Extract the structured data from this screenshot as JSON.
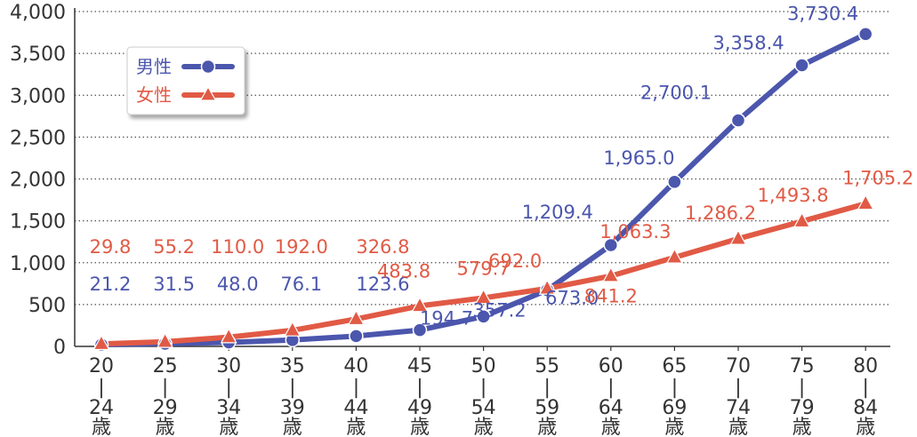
{
  "chart_data": {
    "type": "line",
    "title": "",
    "xlabel": "",
    "ylabel": "",
    "ylim": [
      0,
      4000
    ],
    "y_ticks": [
      "0",
      "500",
      "1,000",
      "1,500",
      "2,000",
      "2,500",
      "3,000",
      "3,500",
      "4,000"
    ],
    "y_tick_values": [
      0,
      500,
      1000,
      1500,
      2000,
      2500,
      3000,
      3500,
      4000
    ],
    "grid": "horizontal-dotted",
    "legend_position": "top-left",
    "categories": [
      {
        "start": "20",
        "end": "24",
        "unit": "歳"
      },
      {
        "start": "25",
        "end": "29",
        "unit": "歳"
      },
      {
        "start": "30",
        "end": "34",
        "unit": "歳"
      },
      {
        "start": "35",
        "end": "39",
        "unit": "歳"
      },
      {
        "start": "40",
        "end": "44",
        "unit": "歳"
      },
      {
        "start": "45",
        "end": "49",
        "unit": "歳"
      },
      {
        "start": "50",
        "end": "54",
        "unit": "歳"
      },
      {
        "start": "55",
        "end": "59",
        "unit": "歳"
      },
      {
        "start": "60",
        "end": "64",
        "unit": "歳"
      },
      {
        "start": "65",
        "end": "69",
        "unit": "歳"
      },
      {
        "start": "70",
        "end": "74",
        "unit": "歳"
      },
      {
        "start": "75",
        "end": "79",
        "unit": "歳"
      },
      {
        "start": "80",
        "end": "84",
        "unit": "歳"
      }
    ],
    "category_separator": "|",
    "series": [
      {
        "name": "男性",
        "color": "#4b56ad",
        "marker": "circle",
        "values": [
          21.2,
          31.5,
          48.0,
          76.1,
          123.6,
          194.7,
          357.2,
          673.0,
          1209.4,
          1965.0,
          2700.1,
          3358.4,
          3730.4
        ],
        "labels": [
          "21.2",
          "31.5",
          "48.0",
          "76.1",
          "123.6",
          "194.7",
          "357.2",
          "673.0",
          "1,209.4",
          "1,965.0",
          "2,700.1",
          "3,358.4",
          "3,730.4"
        ]
      },
      {
        "name": "女性",
        "color": "#e15a45",
        "marker": "triangle",
        "values": [
          29.8,
          55.2,
          110.0,
          192.0,
          326.8,
          483.8,
          579.7,
          692.0,
          841.2,
          1063.3,
          1286.2,
          1493.8,
          1705.2
        ],
        "labels": [
          "29.8",
          "55.2",
          "110.0",
          "192.0",
          "326.8",
          "483.8",
          "579.7",
          "692.0",
          "841.2",
          "1,063.3",
          "1,286.2",
          "1,493.8",
          "1,705.2"
        ]
      }
    ]
  }
}
